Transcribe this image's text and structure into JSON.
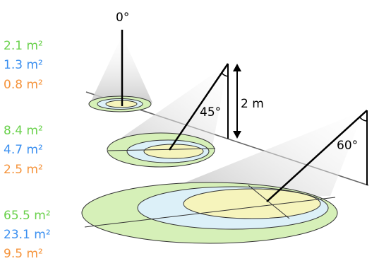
{
  "colors": {
    "green": "#69d14b",
    "blue": "#3a8ff0",
    "orange": "#f5933a",
    "ellipse_outer": "#d6f0b8",
    "ellipse_mid": "#dcf0f8",
    "ellipse_inner": "#f6f4bc",
    "beam": "#d0d0d0"
  },
  "groups": [
    {
      "angle": "0°",
      "green": "2.1 m²",
      "blue": "1.3 m²",
      "orange": "0.8 m²"
    },
    {
      "angle": "45°",
      "green": "8.4 m²",
      "blue": "4.7 m²",
      "orange": "2.5 m²"
    },
    {
      "angle": "60°",
      "green": "65.5 m²",
      "blue": "23.1 m²",
      "orange": "9.5 m²"
    }
  ],
  "height_label": "2 m"
}
